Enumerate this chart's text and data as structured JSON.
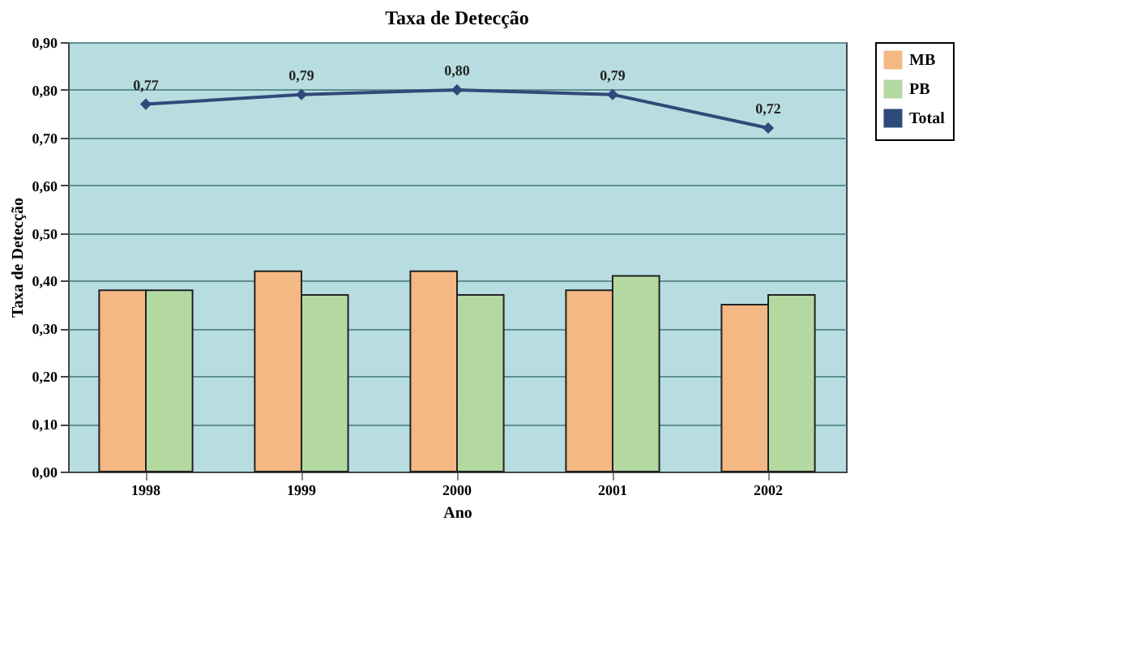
{
  "chart_data": {
    "type": "bar",
    "title": "Taxa de Detecção",
    "xlabel": "Ano",
    "ylabel": "Taxa de Detecção",
    "categories": [
      "1998",
      "1999",
      "2000",
      "2001",
      "2002"
    ],
    "series": [
      {
        "name": "MB",
        "color": "#f4b884",
        "values": [
          0.38,
          0.42,
          0.42,
          0.38,
          0.35
        ]
      },
      {
        "name": "PB",
        "color": "#b3d9a0",
        "values": [
          0.38,
          0.37,
          0.37,
          0.41,
          0.37
        ]
      },
      {
        "name": "Total",
        "type": "line",
        "color": "#2e4a7a",
        "values": [
          0.77,
          0.79,
          0.8,
          0.79,
          0.72
        ],
        "value_labels": [
          "0,77",
          "0,79",
          "0,80",
          "0,79",
          "0,72"
        ],
        "marker": "diamond"
      }
    ],
    "ylim": [
      0,
      0.9
    ],
    "yticks": [
      {
        "value": 0,
        "label": "0,00"
      },
      {
        "value": 0.1,
        "label": "0,10"
      },
      {
        "value": 0.2,
        "label": "0,20"
      },
      {
        "value": 0.3,
        "label": "0,30"
      },
      {
        "value": 0.4,
        "label": "0,40"
      },
      {
        "value": 0.5,
        "label": "0,50"
      },
      {
        "value": 0.6,
        "label": "0,60"
      },
      {
        "value": 0.7,
        "label": "0,70"
      },
      {
        "value": 0.8,
        "label": "0,80"
      },
      {
        "value": 0.9,
        "label": "0,90"
      }
    ],
    "grid": "y",
    "legend": "top right"
  }
}
